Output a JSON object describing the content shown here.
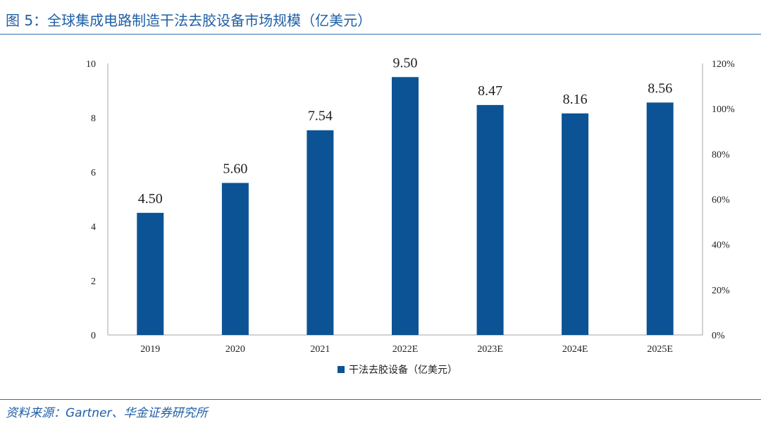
{
  "figure": {
    "title": "图 5：全球集成电路制造干法去胶设备市场规模（亿美元）",
    "source": "资料来源：Gartner、华金证券研究所"
  },
  "chart_data": {
    "type": "bar",
    "categories": [
      "2019",
      "2020",
      "2021",
      "2022E",
      "2023E",
      "2024E",
      "2025E"
    ],
    "series": [
      {
        "name": "干法去胶设备（亿美元）",
        "values": [
          4.5,
          5.6,
          7.54,
          9.5,
          8.47,
          8.16,
          8.56
        ],
        "labels": [
          "4.50",
          "5.60",
          "7.54",
          "9.50",
          "8.47",
          "8.16",
          "8.56"
        ],
        "color": "#0b5394"
      }
    ],
    "ylim": [
      0,
      10
    ],
    "y_ticks": [
      "0",
      "2",
      "4",
      "6",
      "8",
      "10"
    ],
    "y2lim": [
      0,
      120
    ],
    "y2_ticks": [
      "0%",
      "20%",
      "40%",
      "60%",
      "80%",
      "100%",
      "120%"
    ],
    "legend_position": "bottom",
    "grid": false
  }
}
